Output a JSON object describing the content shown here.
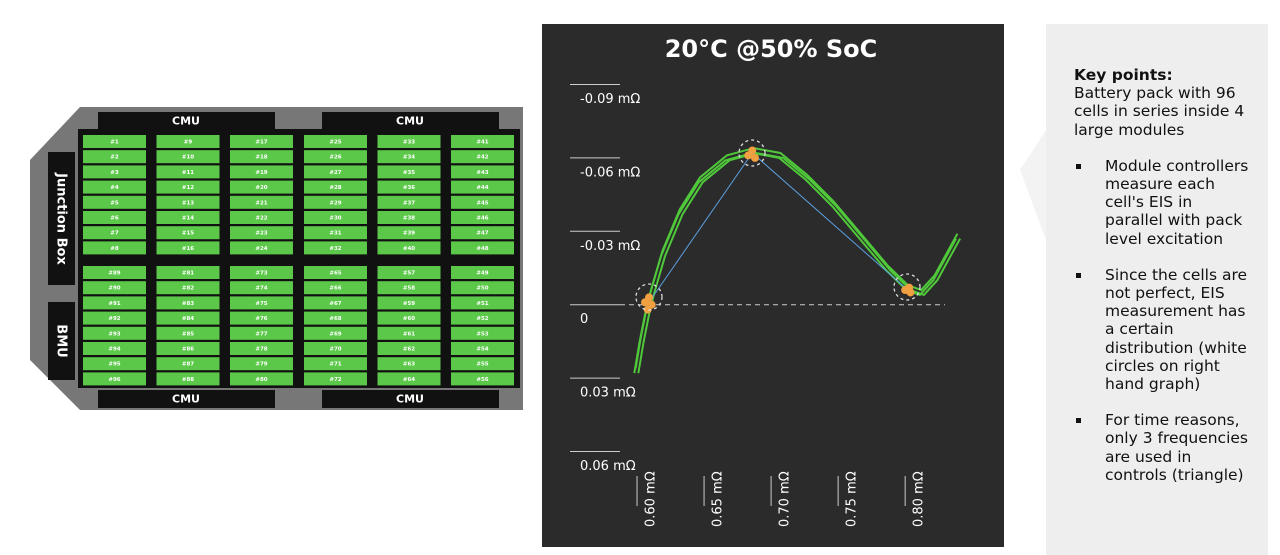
{
  "pack": {
    "cmus": [
      "CMU",
      "CMU",
      "CMU",
      "CMU"
    ],
    "junction_box": "Junction Box",
    "bmu": "BMU",
    "modules": [
      {
        "columns": [
          [
            "#1",
            "#2",
            "#3",
            "#4",
            "#5",
            "#6",
            "#7",
            "#8"
          ],
          [
            "#9",
            "#10",
            "#11",
            "#12",
            "#13",
            "#14",
            "#15",
            "#16"
          ],
          [
            "#17",
            "#18",
            "#19",
            "#20",
            "#21",
            "#22",
            "#23",
            "#24"
          ]
        ]
      },
      {
        "columns": [
          [
            "#25",
            "#26",
            "#27",
            "#28",
            "#29",
            "#30",
            "#31",
            "#32"
          ],
          [
            "#33",
            "#34",
            "#35",
            "#36",
            "#37",
            "#38",
            "#39",
            "#40"
          ],
          [
            "#41",
            "#42",
            "#43",
            "#44",
            "#45",
            "#46",
            "#47",
            "#48"
          ]
        ]
      },
      {
        "columns": [
          [
            "#89",
            "#90",
            "#91",
            "#92",
            "#93",
            "#94",
            "#95",
            "#96"
          ],
          [
            "#81",
            "#82",
            "#83",
            "#84",
            "#85",
            "#86",
            "#87",
            "#88"
          ],
          [
            "#73",
            "#74",
            "#75",
            "#76",
            "#77",
            "#78",
            "#79",
            "#80"
          ]
        ]
      },
      {
        "columns": [
          [
            "#65",
            "#66",
            "#67",
            "#68",
            "#69",
            "#70",
            "#71",
            "#72"
          ],
          [
            "#57",
            "#58",
            "#59",
            "#60",
            "#61",
            "#62",
            "#63",
            "#64"
          ],
          [
            "#49",
            "#50",
            "#51",
            "#52",
            "#53",
            "#54",
            "#55",
            "#56"
          ]
        ]
      }
    ]
  },
  "chart_data": {
    "type": "line",
    "title": "20°C @50% SoC",
    "xlim": [
      0.57,
      0.85
    ],
    "ylim": [
      -0.1,
      0.07
    ],
    "xticks": [
      {
        "value": 0.6,
        "label": "0.60 mΩ"
      },
      {
        "value": 0.65,
        "label": "0.65 mΩ"
      },
      {
        "value": 0.7,
        "label": "0.70 mΩ"
      },
      {
        "value": 0.75,
        "label": "0.75 mΩ"
      },
      {
        "value": 0.8,
        "label": "0.80 mΩ"
      }
    ],
    "yticks": [
      {
        "value": -0.09,
        "label": "-0.09 mΩ"
      },
      {
        "value": -0.06,
        "label": "-0.06 mΩ"
      },
      {
        "value": -0.03,
        "label": "-0.03 mΩ"
      },
      0,
      {
        "value": 0.03,
        "label": "0.03 mΩ"
      },
      {
        "value": 0.06,
        "label": "0.06 mΩ"
      }
    ],
    "series": [
      {
        "color": "#4fc83a",
        "x": [
          0.592,
          0.596,
          0.6,
          0.604,
          0.612,
          0.625,
          0.64,
          0.66,
          0.68,
          0.7,
          0.72,
          0.74,
          0.76,
          0.78,
          0.795,
          0.805,
          0.815,
          0.825,
          0.832
        ],
        "values": [
          0.028,
          0.015,
          0.004,
          -0.005,
          -0.02,
          -0.037,
          -0.05,
          -0.059,
          -0.062,
          -0.06,
          -0.051,
          -0.04,
          -0.027,
          -0.014,
          -0.006,
          -0.004,
          -0.01,
          -0.02,
          -0.027
        ]
      },
      {
        "color": "#4fc83a",
        "x": [
          0.595,
          0.599,
          0.603,
          0.607,
          0.615,
          0.628,
          0.643,
          0.663,
          0.683,
          0.703,
          0.723,
          0.743,
          0.763,
          0.783,
          0.798,
          0.808,
          0.818,
          0.828,
          0.835
        ],
        "values": [
          0.028,
          0.015,
          0.004,
          -0.005,
          -0.02,
          -0.037,
          -0.05,
          -0.059,
          -0.062,
          -0.06,
          -0.051,
          -0.04,
          -0.027,
          -0.014,
          -0.006,
          -0.004,
          -0.01,
          -0.02,
          -0.027
        ]
      },
      {
        "color": "#4fc83a",
        "x": [
          0.593,
          0.597,
          0.601,
          0.605,
          0.613,
          0.626,
          0.641,
          0.661,
          0.681,
          0.701,
          0.721,
          0.741,
          0.761,
          0.781,
          0.796,
          0.806,
          0.816,
          0.826,
          0.833
        ],
        "values": [
          0.026,
          0.013,
          0.002,
          -0.007,
          -0.022,
          -0.039,
          -0.052,
          -0.061,
          -0.064,
          -0.062,
          -0.053,
          -0.042,
          -0.029,
          -0.016,
          -0.008,
          -0.006,
          -0.012,
          -0.022,
          -0.029
        ]
      },
      {
        "color": "#5aa0e0",
        "x": [
          0.603,
          0.68,
          0.796
        ],
        "values": [
          -0.001,
          -0.062,
          -0.006
        ]
      }
    ],
    "markers": {
      "color": "#f0a040",
      "x": [
        0.6,
        0.603,
        0.605,
        0.602,
        0.677,
        0.68,
        0.682,
        0.794,
        0.797,
        0.798
      ],
      "values": [
        -0.001,
        -0.003,
        0.0,
        0.002,
        -0.061,
        -0.063,
        -0.06,
        -0.006,
        -0.007,
        -0.005
      ]
    }
  },
  "key_points": {
    "title": "Key points:",
    "intro": "Battery pack with 96 cells in series inside 4 large modules",
    "bullets": [
      "Module controllers measure each cell's EIS in parallel with pack level excitation",
      "Since the cells are not perfect, EIS measurement has a certain distribution (white circles on right hand graph)",
      "For time reasons, only 3 frequencies are used in controls (triangle)"
    ]
  }
}
